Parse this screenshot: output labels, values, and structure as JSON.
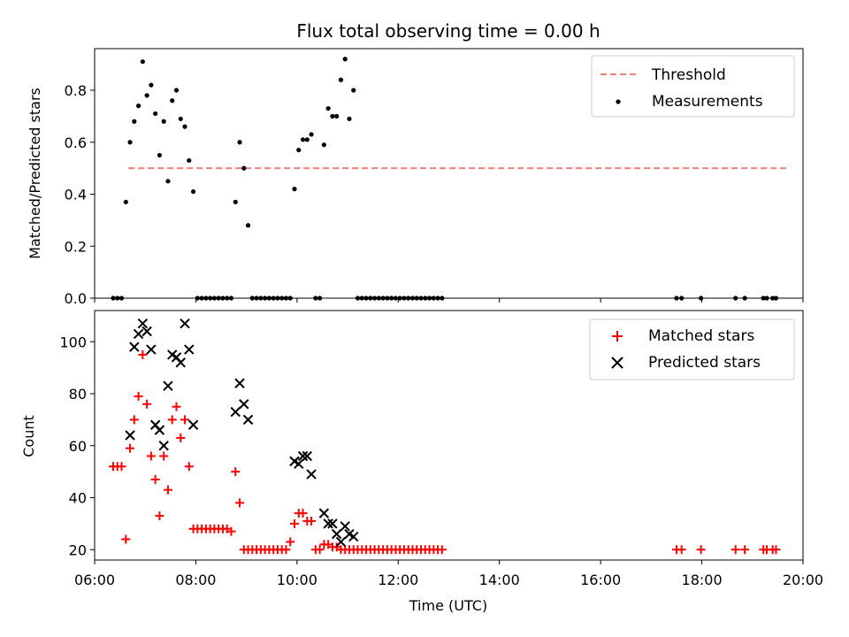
{
  "chart_data": [
    {
      "type": "scatter",
      "title": "Flux total observing time = 0.00 h",
      "ylabel": "Matched/Predicted stars",
      "xlim": [
        "06:00",
        "20:00"
      ],
      "ylim": [
        0,
        0.96
      ],
      "yticks": [
        "0.0",
        "0.2",
        "0.4",
        "0.6",
        "0.8"
      ],
      "threshold": {
        "name": "Threshold",
        "value": 0.5,
        "x_range": [
          "06:40",
          "19:40"
        ],
        "color": "#f08080"
      },
      "series": [
        {
          "name": "Measurements",
          "color": "#000000",
          "x": [
            "06:22",
            "06:27",
            "06:32",
            "06:37",
            "06:42",
            "06:47",
            "06:52",
            "06:57",
            "07:02",
            "07:07",
            "07:12",
            "07:17",
            "07:22",
            "07:27",
            "07:32",
            "07:37",
            "07:42",
            "07:47",
            "07:52",
            "07:57",
            "08:02",
            "08:07",
            "08:12",
            "08:17",
            "08:22",
            "08:27",
            "08:32",
            "08:37",
            "08:42",
            "08:47",
            "08:52",
            "08:57",
            "09:02",
            "09:07",
            "09:12",
            "09:17",
            "09:22",
            "09:27",
            "09:32",
            "09:37",
            "09:42",
            "09:47",
            "09:52",
            "09:57",
            "10:02",
            "10:07",
            "10:12",
            "10:17",
            "10:22",
            "10:27",
            "10:32",
            "10:37",
            "10:42",
            "10:47",
            "10:52",
            "10:57",
            "11:02",
            "11:07",
            "11:12",
            "11:17",
            "11:22",
            "11:27",
            "11:32",
            "11:37",
            "11:42",
            "11:47",
            "11:52",
            "11:57",
            "12:02",
            "12:07",
            "12:12",
            "12:17",
            "12:22",
            "12:27",
            "12:32",
            "12:37",
            "12:42",
            "12:47",
            "12:52",
            "17:30",
            "17:36",
            "17:59",
            "18:40",
            "18:51",
            "19:13",
            "19:17",
            "19:24",
            "19:28"
          ],
          "y": [
            0,
            0,
            0,
            0.37,
            0.6,
            0.68,
            0.74,
            0.91,
            0.78,
            0.82,
            0.71,
            0.55,
            0.68,
            0.45,
            0.76,
            0.8,
            0.69,
            0.66,
            0.53,
            0.41,
            0,
            0,
            0,
            0,
            0,
            0,
            0,
            0,
            0,
            0.37,
            0.6,
            0.5,
            0.28,
            0,
            0,
            0,
            0,
            0,
            0,
            0,
            0,
            0,
            0,
            0.42,
            0.57,
            0.61,
            0.61,
            0.63,
            0,
            0,
            0.59,
            0.73,
            0.7,
            0.7,
            0.84,
            0.92,
            0.69,
            0.8,
            0,
            0,
            0,
            0,
            0,
            0,
            0,
            0,
            0,
            0,
            0,
            0,
            0,
            0,
            0,
            0,
            0,
            0,
            0,
            0,
            0,
            0,
            0,
            0,
            0,
            0,
            0,
            0,
            0,
            0
          ]
        }
      ],
      "legend": "top-right"
    },
    {
      "type": "scatter",
      "xlabel": "Time (UTC)",
      "ylabel": "Count",
      "xlim": [
        "06:00",
        "20:00"
      ],
      "ylim": [
        16,
        112
      ],
      "xticks": [
        "06:00",
        "08:00",
        "10:00",
        "12:00",
        "14:00",
        "16:00",
        "18:00",
        "20:00"
      ],
      "yticks": [
        "20",
        "40",
        "60",
        "80",
        "100"
      ],
      "series": [
        {
          "name": "Matched stars",
          "color": "#ff0000",
          "marker": "plus",
          "x": [
            "06:22",
            "06:27",
            "06:32",
            "06:37",
            "06:42",
            "06:47",
            "06:52",
            "06:57",
            "07:02",
            "07:07",
            "07:12",
            "07:17",
            "07:22",
            "07:27",
            "07:32",
            "07:37",
            "07:42",
            "07:47",
            "07:52",
            "07:57",
            "08:02",
            "08:07",
            "08:12",
            "08:17",
            "08:22",
            "08:27",
            "08:32",
            "08:37",
            "08:42",
            "08:47",
            "08:52",
            "08:57",
            "09:02",
            "09:07",
            "09:12",
            "09:17",
            "09:22",
            "09:27",
            "09:32",
            "09:37",
            "09:42",
            "09:47",
            "09:52",
            "09:57",
            "10:02",
            "10:07",
            "10:12",
            "10:17",
            "10:22",
            "10:27",
            "10:32",
            "10:37",
            "10:42",
            "10:47",
            "10:52",
            "10:57",
            "11:02",
            "11:07",
            "11:12",
            "11:17",
            "11:22",
            "11:27",
            "11:32",
            "11:37",
            "11:42",
            "11:47",
            "11:52",
            "11:57",
            "12:02",
            "12:07",
            "12:12",
            "12:17",
            "12:22",
            "12:27",
            "12:32",
            "12:37",
            "12:42",
            "12:47",
            "12:52",
            "17:30",
            "17:36",
            "17:59",
            "18:40",
            "18:51",
            "19:13",
            "19:17",
            "19:24",
            "19:28"
          ],
          "y": [
            52,
            52,
            52,
            24,
            59,
            70,
            79,
            95,
            76,
            56,
            47,
            33,
            56,
            43,
            70,
            75,
            63,
            70,
            52,
            28,
            28,
            28,
            28,
            28,
            28,
            28,
            28,
            28,
            27,
            50,
            38,
            20,
            20,
            20,
            20,
            20,
            20,
            20,
            20,
            20,
            20,
            20,
            23,
            30,
            34,
            34,
            31,
            31,
            20,
            20,
            22,
            22,
            21,
            21,
            20,
            20,
            20,
            20,
            20,
            20,
            20,
            20,
            20,
            20,
            20,
            20,
            20,
            20,
            20,
            20,
            20,
            20,
            20,
            20,
            20,
            20,
            20,
            20,
            20,
            20,
            20,
            20,
            20,
            20,
            20,
            20,
            20,
            20
          ]
        },
        {
          "name": "Predicted stars",
          "color": "#000000",
          "marker": "x",
          "x": [
            "06:42",
            "06:47",
            "06:52",
            "06:57",
            "07:02",
            "07:07",
            "07:12",
            "07:17",
            "07:22",
            "07:27",
            "07:32",
            "07:37",
            "07:42",
            "07:47",
            "07:52",
            "07:57",
            "08:47",
            "08:52",
            "08:57",
            "09:02",
            "09:57",
            "10:02",
            "10:07",
            "10:12",
            "10:17",
            "10:32",
            "10:37",
            "10:42",
            "10:47",
            "10:52",
            "10:57",
            "11:02",
            "11:07"
          ],
          "y": [
            64,
            98,
            103,
            107,
            104,
            97,
            68,
            66,
            60,
            83,
            95,
            94,
            92,
            107,
            97,
            68,
            73,
            84,
            76,
            70,
            54,
            53,
            56,
            56,
            49,
            34,
            30,
            30,
            26,
            23,
            29,
            26,
            25
          ]
        }
      ],
      "legend": "top-right"
    }
  ]
}
